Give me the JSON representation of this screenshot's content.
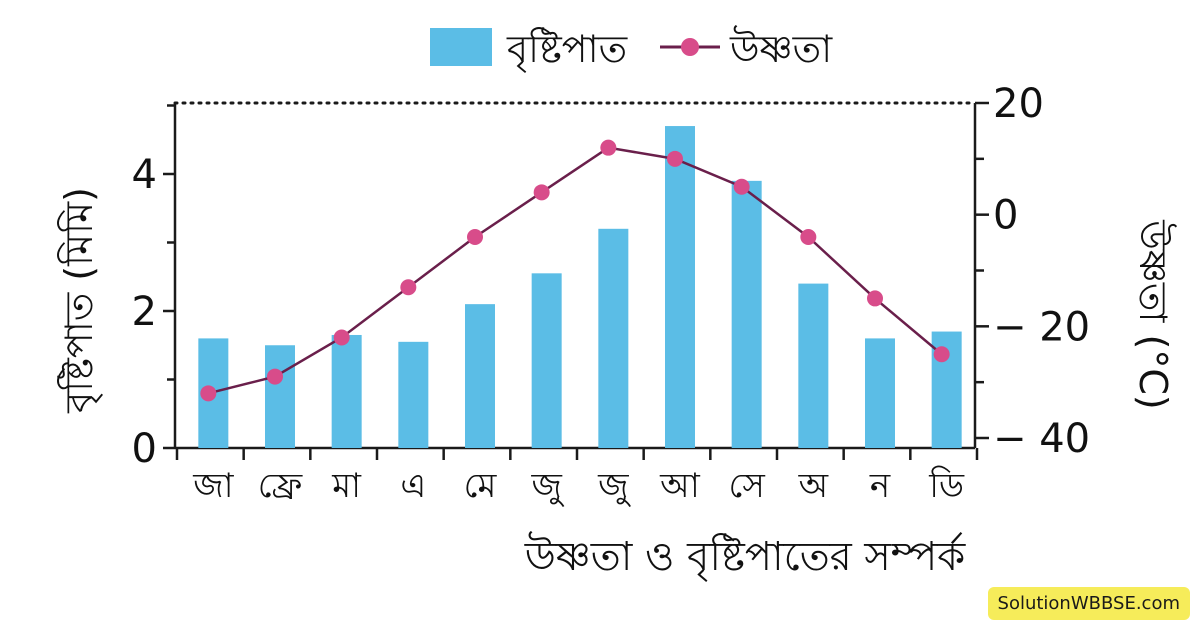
{
  "chart_data": {
    "type": "bar",
    "title": "উষ্ণতা ও বৃষ্টিপাতের সম্পর্ক",
    "categories": [
      "জা",
      "ফ্রে",
      "মা",
      "এ",
      "মে",
      "জু",
      "জু",
      "আ",
      "সে",
      "অ",
      "ন",
      "ডি"
    ],
    "series": [
      {
        "name": "বৃষ্টিপাত",
        "type": "bar",
        "axis": "left",
        "values": [
          1.6,
          1.5,
          1.65,
          1.55,
          2.1,
          2.55,
          3.2,
          4.7,
          3.9,
          2.4,
          1.6,
          1.7
        ]
      },
      {
        "name": "উষ্ণতা",
        "type": "line",
        "axis": "right",
        "values": [
          -32,
          -29,
          -22,
          -13,
          -4,
          4,
          12,
          10,
          5,
          -4,
          -15,
          -25
        ]
      }
    ],
    "ylabel": "বৃষ্টিপাত (মিমি)",
    "ylim": [
      0,
      5
    ],
    "yticks": [
      0,
      2,
      4
    ],
    "y2label": "উষ্ণতা (°C)",
    "y2lim": [
      -40,
      20
    ],
    "y2ticks": [
      20,
      0,
      -20,
      -40
    ],
    "y2tick_labels": [
      "20",
      "0",
      "− 20",
      "− 40"
    ],
    "legend_position": "top-center",
    "colors": {
      "bar": "#5bbde6",
      "line": "#6a1f4b",
      "marker": "#d84c8a"
    }
  },
  "watermark": "SolutionWBBSE.com"
}
